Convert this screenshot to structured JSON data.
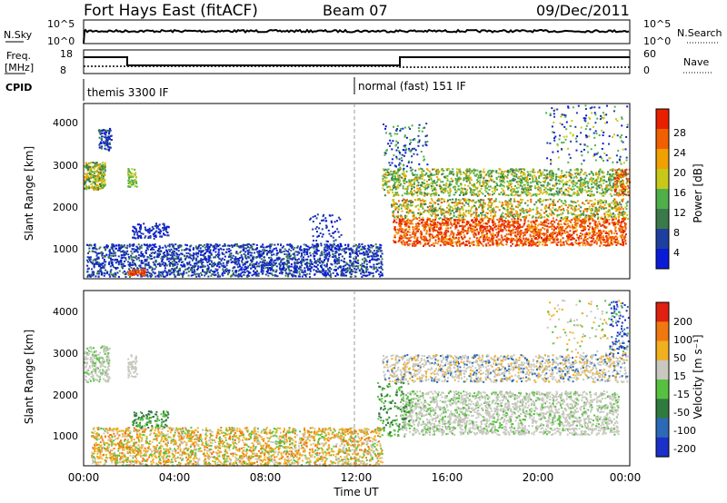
{
  "header": {
    "station": "Fort Hays East (fitACF)",
    "beam": "Beam 07",
    "date": "09/Dec/2011"
  },
  "top_panels": {
    "nsky_label": "N.Sky",
    "nsky_ticks": [
      "10^5",
      "10^0"
    ],
    "nsearch_label": "N.Search",
    "nsearch_ticks": [
      "10^5",
      "10^0"
    ],
    "freq_label_line1": "Freq.",
    "freq_label_line2": "[MHz]",
    "freq_ticks": [
      "18",
      "8"
    ],
    "nave_label": "Nave",
    "nave_ticks": [
      "60",
      "0"
    ],
    "cpid_label": "CPID",
    "cpid_mode_1": "themis 3300 IF",
    "cpid_mode_2": "normal (fast) 151 IF"
  },
  "chart_data": [
    {
      "type": "heatmap",
      "name": "Power",
      "ylabel": "Slant Range [km]",
      "yticks": [
        "4000",
        "3000",
        "2000",
        "1000"
      ],
      "colorbar_label": "Power [dB]",
      "colorbar_ticks": [
        "28",
        "24",
        "20",
        "16",
        "12",
        "8",
        "4"
      ],
      "colors": [
        "#0a1bd8",
        "#1f3fa0",
        "#3a7a4a",
        "#4fb04a",
        "#c8c81a",
        "#f0a000",
        "#f06000",
        "#e82000"
      ]
    },
    {
      "type": "heatmap",
      "name": "Velocity",
      "ylabel": "Slant Range [km]",
      "yticks": [
        "4000",
        "3000",
        "2000",
        "1000"
      ],
      "colorbar_label": "Velocity [m s⁻¹]",
      "colorbar_ticks": [
        "200",
        "100",
        "50",
        "15",
        "-15",
        "-50",
        "-100",
        "-200"
      ],
      "colors": [
        "#1a30c8",
        "#2c6ab8",
        "#2f7a3e",
        "#58c040",
        "#c8c8c0",
        "#f0b020",
        "#f07810",
        "#e02010"
      ]
    }
  ],
  "xaxis": {
    "ticks": [
      "00:00",
      "04:00",
      "08:00",
      "12:00",
      "16:00",
      "20:00",
      "00:00"
    ],
    "label": "Time UT"
  }
}
